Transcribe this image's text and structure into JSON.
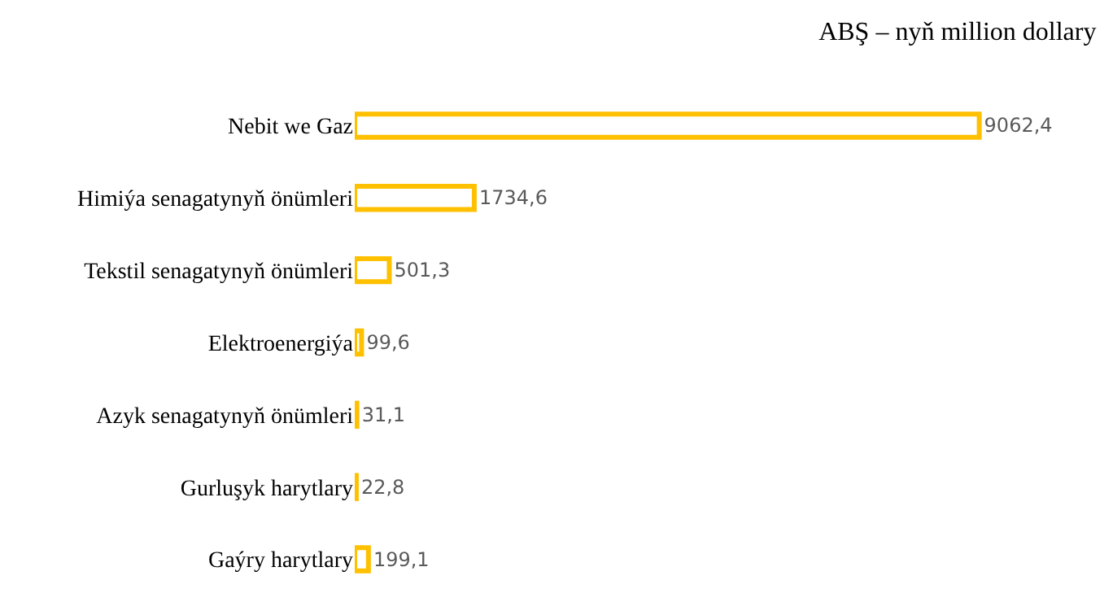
{
  "chart_data": {
    "type": "bar",
    "orientation": "horizontal",
    "title": "ABŞ – nyň million dollary",
    "categories": [
      "Nebit we Gaz",
      "Himiýa senagatynyň önümleri",
      "Tekstil senagatynyň önümleri",
      "Elektroenergiýa",
      "Azyk senagatynyň önümleri",
      "Gurluşyk harytlary",
      "Gaýry harytlary"
    ],
    "values": [
      9062.4,
      1734.6,
      501.3,
      99.6,
      31.1,
      22.8,
      199.1
    ],
    "value_labels": [
      "9062,4",
      "1734,6",
      "501,3",
      "99,6",
      "31,1",
      "22,8",
      "199,1"
    ],
    "color": "#ffc000",
    "grid": false,
    "legend": false
  }
}
